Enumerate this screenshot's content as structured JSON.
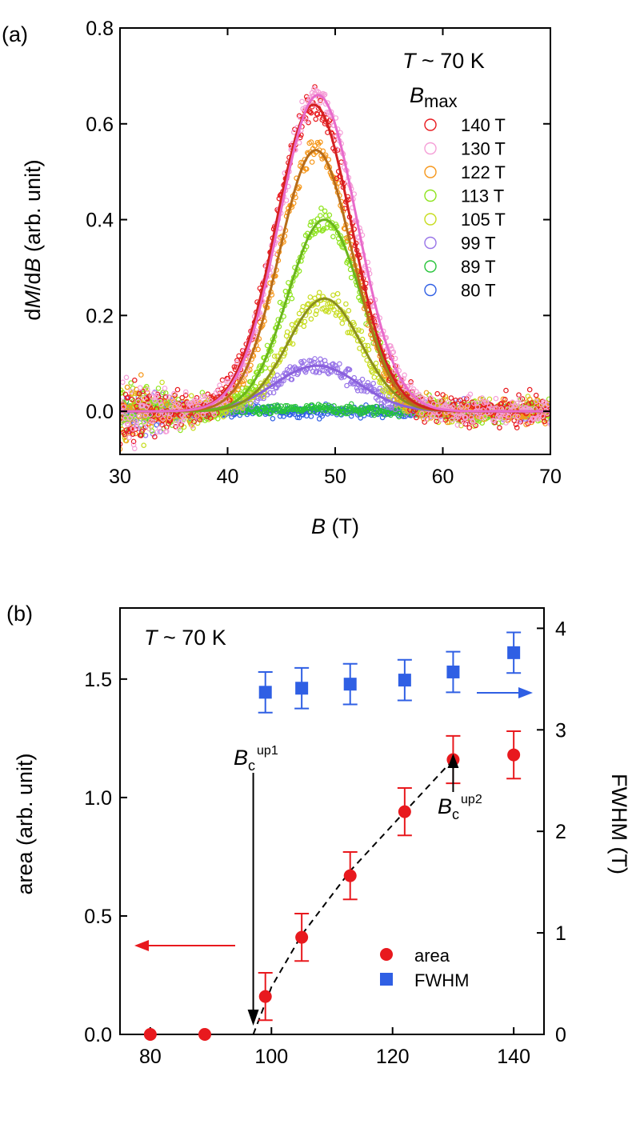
{
  "chart_data": [
    {
      "panel_label": "(a)",
      "type": "scatter",
      "annotation": "T ~ 70 K",
      "annotation_T": "T",
      "annotation_rest": " ~ 70 K",
      "xlabel": "B (T)",
      "xlabel_var": "B",
      "xlabel_unit": " (T)",
      "ylabel": "dM/dB (arb. unit)",
      "ylabel_parts": [
        "d",
        "M",
        "/d",
        "B",
        " (arb. unit)"
      ],
      "xlim": [
        30,
        70
      ],
      "ylim": [
        -0.09,
        0.8
      ],
      "xticks": [
        30,
        40,
        50,
        60,
        70
      ],
      "xtick_labels": [
        "30",
        "40",
        "50",
        "60",
        "70"
      ],
      "yticks": [
        0.0,
        0.2,
        0.4,
        0.6,
        0.8
      ],
      "ytick_labels": [
        "0.0",
        "0.2",
        "0.4",
        "0.6",
        "0.8"
      ],
      "legend_title": "Bmax",
      "legend_title_var": "B",
      "legend_title_sub": "max",
      "series": [
        {
          "name": "140 T",
          "color": "#e8191e",
          "fit_color": "#d42020",
          "peak_B": 48.0,
          "amplitude": 0.64,
          "fwhm": 8.3,
          "noise": 0.03
        },
        {
          "name": "130 T",
          "color": "#f59fd7",
          "fit_color": "#e86acb",
          "peak_B": 48.4,
          "amplitude": 0.66,
          "fwhm": 8.5,
          "noise": 0.03
        },
        {
          "name": "122 T",
          "color": "#f6971a",
          "fit_color": "#b86d1a",
          "peak_B": 48.2,
          "amplitude": 0.545,
          "fwhm": 8.0,
          "noise": 0.025
        },
        {
          "name": "113 T",
          "color": "#8ee41e",
          "fit_color": "#6ab51c",
          "peak_B": 49.0,
          "amplitude": 0.4,
          "fwhm": 8.0,
          "noise": 0.025
        },
        {
          "name": "105 T",
          "color": "#c7dc1e",
          "fit_color": "#8b8f1e",
          "peak_B": 49.0,
          "amplitude": 0.235,
          "fwhm": 8.0,
          "noise": 0.025
        },
        {
          "name": "99 T",
          "color": "#9874e8",
          "fit_color": "#8a60dc",
          "peak_B": 48.3,
          "amplitude": 0.095,
          "fwhm": 9.2,
          "noise": 0.02
        },
        {
          "name": "89 T",
          "color": "#27c43a",
          "fit_color": "#27c43a",
          "peak_B": 48.0,
          "amplitude": 0.005,
          "fwhm": 8.0,
          "noise": 0.01
        },
        {
          "name": "80 T",
          "color": "#2f5fe4",
          "fit_color": "#2f5fe4",
          "peak_B": 48.0,
          "amplitude": 0.0,
          "fwhm": 8.0,
          "noise": 0.012
        }
      ]
    },
    {
      "panel_label": "(b)",
      "type": "scatter",
      "annotation": "T ~ 70 K",
      "annotation_T": "T",
      "annotation_rest": " ~ 70 K",
      "xlabel": "",
      "ylabel_left": "area (arb. unit)",
      "ylabel_right": "FWHM (T)",
      "xlim": [
        75,
        145
      ],
      "ylim_left": [
        0,
        1.8
      ],
      "ylim_right": [
        0,
        4.2
      ],
      "xticks": [
        80,
        100,
        120,
        140
      ],
      "xtick_labels": [
        "80",
        "100",
        "120",
        "140"
      ],
      "yticks_left": [
        0.0,
        0.5,
        1.0,
        1.5
      ],
      "ytick_labels_left": [
        "0.0",
        "0.5",
        "1.0",
        "1.5"
      ],
      "yticks_right": [
        0,
        1,
        2,
        3,
        4
      ],
      "ytick_labels_right": [
        "0",
        "1",
        "2",
        "3",
        "4"
      ],
      "series": [
        {
          "name": "area",
          "axis": "left",
          "color": "#e8191e",
          "marker": "circle",
          "x": [
            80,
            89,
            99,
            105,
            113,
            122,
            130,
            140
          ],
          "y": [
            0.0,
            0.0,
            0.16,
            0.41,
            0.67,
            0.94,
            1.16,
            1.18
          ],
          "err": [
            0,
            0,
            0.1,
            0.1,
            0.1,
            0.1,
            0.1,
            0.1
          ]
        },
        {
          "name": "FWHM",
          "axis": "right",
          "color": "#2f5fe4",
          "marker": "square",
          "x": [
            99,
            105,
            113,
            122,
            130,
            140
          ],
          "y": [
            3.37,
            3.41,
            3.45,
            3.49,
            3.57,
            3.76
          ],
          "err": [
            0.2,
            0.2,
            0.2,
            0.2,
            0.2,
            0.2
          ]
        }
      ],
      "guide_line": {
        "style": "dashed",
        "x": [
          97,
          100,
          105,
          113,
          122,
          130
        ],
        "y": [
          0.0,
          0.2,
          0.42,
          0.69,
          0.94,
          1.16
        ]
      },
      "markers": [
        {
          "var": "B",
          "sub": "c",
          "sup": "up1",
          "x": 97,
          "direction": "down"
        },
        {
          "var": "B",
          "sub": "c",
          "sup": "up2",
          "x": 130,
          "direction": "up"
        }
      ],
      "axis_arrows": [
        {
          "series": "area",
          "direction": "left",
          "color": "#e8191e"
        },
        {
          "series": "FWHM",
          "direction": "right",
          "color": "#2f5fe4"
        }
      ]
    }
  ]
}
